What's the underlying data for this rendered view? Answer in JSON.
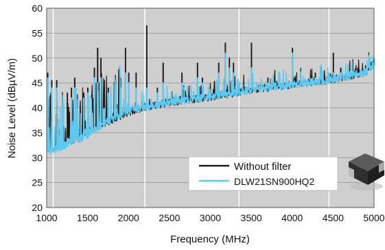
{
  "chart_data": {
    "type": "line",
    "title": "",
    "xlabel": "Frequency (MHz)",
    "ylabel": "Noise Level (dBµV/m)",
    "xlim": [
      1000,
      5000
    ],
    "ylim": [
      20,
      60
    ],
    "x_ticks": [
      1000,
      1500,
      2000,
      2500,
      3000,
      3500,
      4000,
      4500,
      5000
    ],
    "y_ticks": [
      20,
      25,
      30,
      35,
      40,
      45,
      50,
      55,
      60
    ],
    "grid": true,
    "legend_position": "bottom-right",
    "background_color": "#cfcfcf",
    "series": [
      {
        "name": "Without filter",
        "color": "#1a1a1a",
        "baseline": [
          [
            1000,
            32
          ],
          [
            1100,
            32
          ],
          [
            1250,
            33
          ],
          [
            1400,
            34
          ],
          [
            1600,
            36
          ],
          [
            1800,
            37.5
          ],
          [
            2000,
            39
          ],
          [
            2200,
            40
          ],
          [
            2500,
            41
          ],
          [
            3000,
            42
          ],
          [
            3500,
            43.5
          ],
          [
            4000,
            44.5
          ],
          [
            4500,
            45.5
          ],
          [
            4900,
            47
          ],
          [
            5000,
            49
          ]
        ],
        "peaks": [
          [
            1010,
            47
          ],
          [
            1060,
            45.5
          ],
          [
            1120,
            45.5
          ],
          [
            1250,
            43
          ],
          [
            1300,
            44
          ],
          [
            1340,
            46
          ],
          [
            1450,
            43
          ],
          [
            1500,
            44
          ],
          [
            1580,
            48
          ],
          [
            1620,
            52
          ],
          [
            1660,
            50
          ],
          [
            1750,
            44
          ],
          [
            1900,
            46
          ],
          [
            1960,
            52
          ],
          [
            2000,
            47
          ],
          [
            2090,
            47
          ],
          [
            2220,
            56.5
          ],
          [
            2350,
            44
          ],
          [
            2420,
            49
          ],
          [
            2520,
            43
          ],
          [
            2650,
            47
          ],
          [
            2840,
            49
          ],
          [
            2900,
            46
          ],
          [
            3100,
            49
          ],
          [
            3180,
            53
          ],
          [
            3230,
            50
          ],
          [
            3280,
            49
          ],
          [
            3350,
            45
          ],
          [
            3500,
            53
          ],
          [
            3560,
            45
          ],
          [
            3700,
            46
          ],
          [
            4000,
            52
          ],
          [
            4100,
            47
          ],
          [
            4280,
            47
          ],
          [
            4450,
            47
          ],
          [
            4500,
            51
          ],
          [
            4590,
            48
          ],
          [
            4700,
            47
          ],
          [
            4800,
            48
          ],
          [
            5000,
            50
          ]
        ]
      },
      {
        "name": "DLW21SN900HQ2",
        "color": "#5ec8ee",
        "baseline": [
          [
            1000,
            31
          ],
          [
            1100,
            31.5
          ],
          [
            1250,
            32.5
          ],
          [
            1400,
            33.5
          ],
          [
            1600,
            35.5
          ],
          [
            1800,
            37.5
          ],
          [
            2000,
            39.5
          ],
          [
            2200,
            40
          ],
          [
            2500,
            41
          ],
          [
            3000,
            42
          ],
          [
            3500,
            43.5
          ],
          [
            4000,
            44.5
          ],
          [
            4500,
            45.5
          ],
          [
            4900,
            47
          ],
          [
            5000,
            48.5
          ]
        ],
        "peaks": [
          [
            1010,
            46
          ],
          [
            1060,
            44
          ],
          [
            1120,
            44
          ],
          [
            1200,
            41
          ],
          [
            1300,
            42
          ],
          [
            1340,
            44
          ],
          [
            1450,
            42
          ],
          [
            1500,
            43
          ],
          [
            1580,
            46
          ],
          [
            1620,
            45
          ],
          [
            1660,
            46
          ],
          [
            1750,
            43
          ],
          [
            1900,
            44
          ],
          [
            1960,
            47
          ],
          [
            2000,
            45
          ],
          [
            2090,
            44
          ],
          [
            2220,
            44
          ],
          [
            2350,
            43
          ],
          [
            2420,
            45
          ],
          [
            2520,
            43
          ],
          [
            2650,
            45
          ],
          [
            2840,
            46
          ],
          [
            2900,
            45
          ],
          [
            3100,
            47
          ],
          [
            3180,
            51
          ],
          [
            3230,
            48
          ],
          [
            3280,
            47
          ],
          [
            3350,
            45
          ],
          [
            3500,
            48
          ],
          [
            3560,
            45
          ],
          [
            3700,
            45
          ],
          [
            4000,
            51
          ],
          [
            4100,
            46
          ],
          [
            4280,
            46
          ],
          [
            4450,
            47
          ],
          [
            4500,
            47
          ],
          [
            4590,
            47
          ],
          [
            4700,
            47
          ],
          [
            4800,
            47
          ],
          [
            5000,
            50
          ]
        ]
      }
    ],
    "white_marker_lines_x": [
      1080,
      2200,
      3350,
      4450
    ]
  }
}
